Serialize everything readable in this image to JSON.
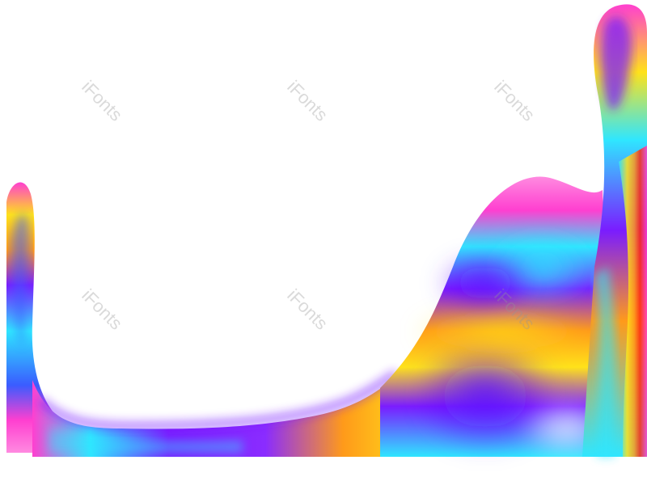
{
  "image": {
    "subject": "abstract iridescent holographic wave border",
    "palette": {
      "magenta": "#ff3fd0",
      "violet": "#7a1cff",
      "blue": "#3a5cff",
      "cyan": "#2fe6ff",
      "yellow": "#ffe21a",
      "orange": "#ff9a1a",
      "red": "#ff2a10",
      "pink": "#ff8ae0"
    }
  },
  "watermarks": [
    "iFonts",
    "iFonts",
    "iFonts",
    "iFonts",
    "iFonts",
    "iFonts"
  ]
}
